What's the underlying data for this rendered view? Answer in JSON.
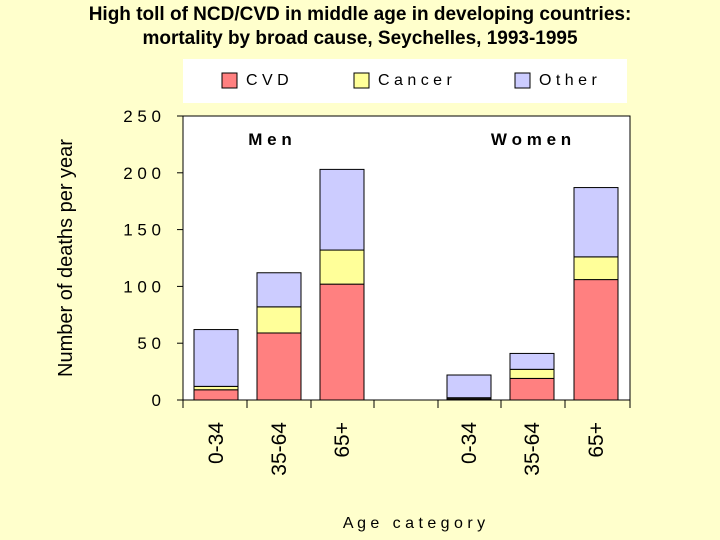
{
  "title": {
    "line1": "High toll of NCD/CVD in middle age in developing countries:",
    "line2": "mortality by broad cause, Seychelles, 1993-1995"
  },
  "chart_data": {
    "type": "bar",
    "stacked": true,
    "categories": [
      "0-34",
      "35-64",
      "65+",
      "0-34",
      "35-64",
      "65+"
    ],
    "groups": [
      {
        "label": "Men",
        "categories": [
          "0-34",
          "35-64",
          "65+"
        ]
      },
      {
        "label": "Women",
        "categories": [
          "0-34",
          "35-64",
          "65+"
        ]
      }
    ],
    "series": [
      {
        "name": "CVD",
        "color": "#ff8080",
        "values": [
          9,
          59,
          102,
          1,
          19,
          106
        ]
      },
      {
        "name": "Cancer",
        "color": "#ffff99",
        "values": [
          3,
          23,
          30,
          1,
          8,
          20
        ]
      },
      {
        "name": "Other",
        "color": "#ccccff",
        "values": [
          50,
          30,
          71,
          20,
          14,
          61
        ]
      }
    ],
    "ylabel": "Number of deaths per year",
    "xlabel": "Age category",
    "ylim": [
      0,
      250
    ],
    "yticks": [
      0,
      50,
      100,
      150,
      200,
      250
    ],
    "ytick_labels": [
      "0",
      "5 0",
      "1 0 0",
      "1 5 0",
      "2 0 0",
      "2 5 0"
    ],
    "legend": {
      "position": "top",
      "entries": [
        "C V D",
        "C a n c e r",
        "O t h e r"
      ]
    },
    "group_labels": [
      "M e n",
      "W o m e n"
    ],
    "xlabel_display": "A g e   c a t e g o r y"
  }
}
